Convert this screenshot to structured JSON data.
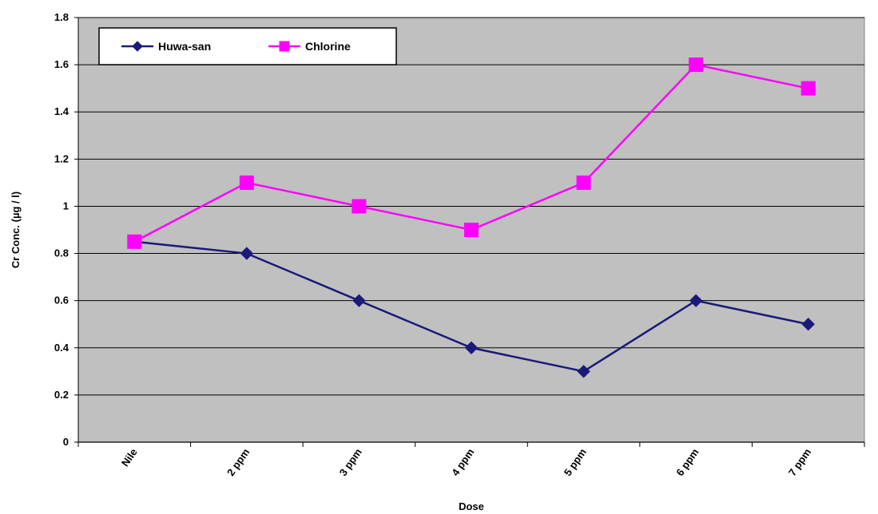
{
  "chart_data": {
    "type": "line",
    "categories": [
      "Nile",
      "2 ppm",
      "3 ppm",
      "4 ppm",
      "5 ppm",
      "6 ppm",
      "7 ppm"
    ],
    "series": [
      {
        "name": "Huwa-san",
        "values": [
          0.85,
          0.8,
          0.6,
          0.4,
          0.3,
          0.6,
          0.5
        ],
        "color": "#1a1a7a",
        "marker": "diamond"
      },
      {
        "name": "Chlorine",
        "values": [
          0.85,
          1.1,
          1.0,
          0.9,
          1.1,
          1.6,
          1.5
        ],
        "color": "#ff00ff",
        "marker": "square"
      }
    ],
    "xlabel": "Dose",
    "ylabel": "Cr Conc. (µg / l)",
    "ylim": [
      0,
      1.8
    ],
    "yticks": [
      "0",
      "0.2",
      "0.4",
      "0.6",
      "0.8",
      "1",
      "1.2",
      "1.4",
      "1.6",
      "1.8"
    ],
    "grid": true,
    "plot_background": "#c0c0c0",
    "legend_position": "top-left"
  }
}
